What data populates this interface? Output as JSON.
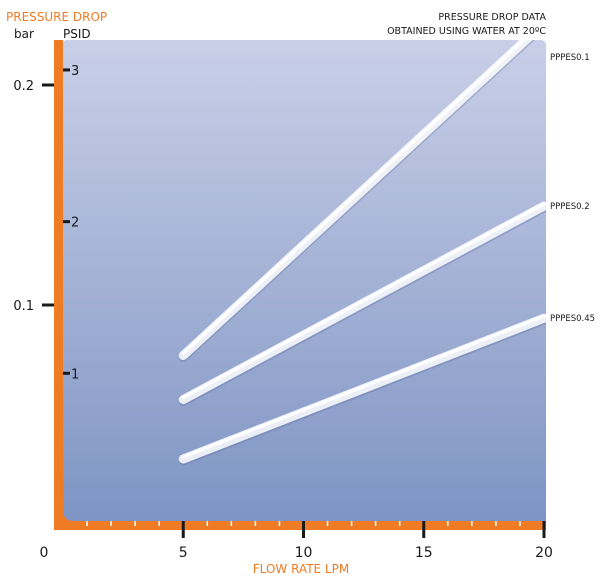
{
  "chart_data": {
    "type": "line",
    "y_axis_title": "PRESSURE DROP",
    "y_unit_bar": "bar",
    "y_unit_psid": "PSID",
    "x_axis_title": "FLOW RATE LPM",
    "note_line1": "PRESSURE DROP DATA",
    "note_line2": "OBTAINED USING WATER AT 20ºC",
    "x_range": [
      0,
      20
    ],
    "x_ticks": [
      "0",
      "5",
      "10",
      "15",
      "20"
    ],
    "x_tick_values": [
      0,
      5,
      10,
      15,
      20
    ],
    "bar_ticks": [
      "0.1",
      "0.2"
    ],
    "bar_tick_values": [
      0.1,
      0.2
    ],
    "psid_ticks": [
      "1",
      "2",
      "3"
    ],
    "psid_tick_values": [
      1,
      2,
      3
    ],
    "bar_range": [
      0,
      0.215
    ],
    "series": [
      {
        "name": "PPPES0.1",
        "x": [
          5,
          20
        ],
        "y_bar": [
          0.077,
          0.228
        ]
      },
      {
        "name": "PPPES0.2",
        "x": [
          5,
          20
        ],
        "y_bar": [
          0.057,
          0.145
        ]
      },
      {
        "name": "PPPES0.45",
        "x": [
          5,
          20
        ],
        "y_bar": [
          0.03,
          0.094
        ]
      }
    ],
    "grid": false,
    "legend": "series labels at right end of lines"
  },
  "colors": {
    "axis": "#f07b25",
    "plot_top": "#c9cfe7",
    "plot_bottom": "#7d93c3",
    "line": "#ffffff"
  }
}
